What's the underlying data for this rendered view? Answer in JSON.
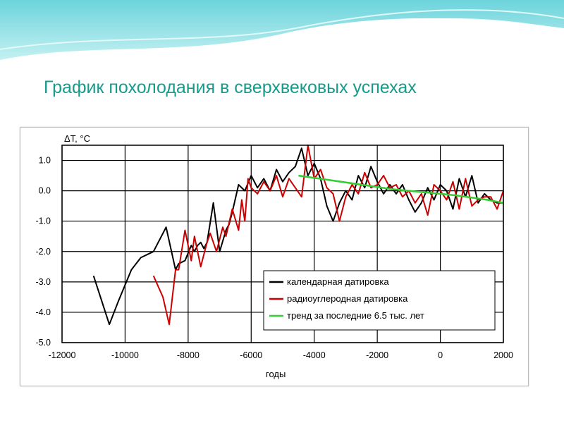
{
  "slide": {
    "title": "График похолодания в сверхвековых успехах"
  },
  "colors": {
    "title": "#169b8c",
    "calendar": "#000000",
    "radiocarbon": "#cc0000",
    "trend": "#33cc33",
    "grid": "#000000"
  },
  "chart_data": {
    "type": "line",
    "title": "",
    "xlabel": "годы",
    "ylabel": "ΔT, °C",
    "xlim": [
      -12000,
      2000
    ],
    "ylim": [
      -5.0,
      1.5
    ],
    "grid": true,
    "legend_position": "bottom-right",
    "x_ticks": [
      -12000,
      -10000,
      -8000,
      -6000,
      -4000,
      -2000,
      0,
      2000
    ],
    "x_tick_labels": [
      "-12000",
      "-10000",
      "-8000",
      "-6000",
      "-4000",
      "-2000",
      "0",
      "2000"
    ],
    "y_ticks": [
      1.0,
      0.0,
      -1.0,
      -2.0,
      -3.0,
      -4.0,
      -5.0
    ],
    "y_tick_labels": [
      "1.0",
      "0.0",
      "-1.0",
      "-2.0",
      "-3.0",
      "-4.0",
      "-5.0"
    ],
    "series": [
      {
        "name": "календарная датировка",
        "color": "#000000",
        "x": [
          -11000,
          -10500,
          -10200,
          -9800,
          -9500,
          -9100,
          -8700,
          -8400,
          -8300,
          -8100,
          -7900,
          -7800,
          -7700,
          -7600,
          -7500,
          -7400,
          -7200,
          -7000,
          -6800,
          -6700,
          -6600,
          -6400,
          -6200,
          -6000,
          -5800,
          -5600,
          -5400,
          -5200,
          -5000,
          -4800,
          -4600,
          -4400,
          -4200,
          -4000,
          -3800,
          -3600,
          -3400,
          -3200,
          -3000,
          -2800,
          -2600,
          -2400,
          -2200,
          -2000,
          -1800,
          -1600,
          -1400,
          -1200,
          -1000,
          -800,
          -600,
          -400,
          -200,
          0,
          200,
          400,
          600,
          800,
          1000,
          1200,
          1400,
          1600,
          1800,
          2000
        ],
        "y": [
          -2.8,
          -4.4,
          -3.6,
          -2.6,
          -2.2,
          -2.0,
          -1.2,
          -2.6,
          -2.4,
          -2.3,
          -1.8,
          -2.0,
          -1.8,
          -1.7,
          -1.9,
          -1.7,
          -0.4,
          -2.0,
          -1.3,
          -1.1,
          -0.7,
          0.2,
          0.0,
          0.5,
          0.1,
          0.4,
          0.0,
          0.7,
          0.3,
          0.6,
          0.8,
          1.4,
          0.5,
          0.9,
          0.4,
          -0.5,
          -1.0,
          -0.4,
          0.0,
          -0.3,
          0.5,
          0.1,
          0.8,
          0.3,
          -0.1,
          0.2,
          -0.1,
          0.2,
          -0.3,
          -0.7,
          -0.4,
          0.1,
          -0.3,
          0.2,
          0.0,
          -0.6,
          0.4,
          -0.2,
          0.5,
          -0.4,
          -0.1,
          -0.3,
          -0.4,
          -0.4
        ]
      },
      {
        "name": "радиоуглеродная датировка",
        "color": "#cc0000",
        "x": [
          -9100,
          -8800,
          -8600,
          -8400,
          -8300,
          -8100,
          -7900,
          -7800,
          -7600,
          -7400,
          -7300,
          -7100,
          -6900,
          -6800,
          -6600,
          -6400,
          -6300,
          -6200,
          -6100,
          -6000,
          -5800,
          -5600,
          -5400,
          -5200,
          -5000,
          -4800,
          -4600,
          -4400,
          -4200,
          -4000,
          -3800,
          -3600,
          -3400,
          -3200,
          -3000,
          -2800,
          -2600,
          -2400,
          -2200,
          -2000,
          -1800,
          -1600,
          -1400,
          -1200,
          -1000,
          -800,
          -600,
          -400,
          -200,
          0,
          200,
          400,
          600,
          800,
          1000,
          1200,
          1400,
          1600,
          1800,
          2000
        ],
        "y": [
          -2.8,
          -3.5,
          -4.4,
          -2.6,
          -2.6,
          -1.3,
          -2.3,
          -1.5,
          -2.5,
          -1.7,
          -1.4,
          -2.0,
          -1.2,
          -1.5,
          -0.6,
          -1.3,
          -0.3,
          -1.0,
          0.4,
          0.1,
          -0.1,
          0.3,
          0.0,
          0.5,
          -0.2,
          0.4,
          0.1,
          -0.2,
          1.5,
          0.4,
          0.7,
          0.1,
          -0.1,
          -1.0,
          -0.2,
          0.2,
          -0.1,
          0.6,
          0.1,
          0.2,
          0.5,
          0.1,
          0.2,
          -0.2,
          0.0,
          -0.4,
          -0.1,
          -0.8,
          0.2,
          0.0,
          -0.3,
          0.3,
          -0.6,
          0.4,
          -0.5,
          -0.3,
          -0.2,
          -0.2,
          -0.6,
          0.0
        ]
      },
      {
        "name": "тренд за последние 6.5 тыс. лет",
        "color": "#33cc33",
        "x": [
          -4500,
          -3500,
          -2500,
          -1500,
          -500,
          500,
          1500,
          2000
        ],
        "y": [
          0.5,
          0.35,
          0.2,
          0.05,
          -0.05,
          -0.15,
          -0.3,
          -0.4
        ]
      }
    ]
  }
}
